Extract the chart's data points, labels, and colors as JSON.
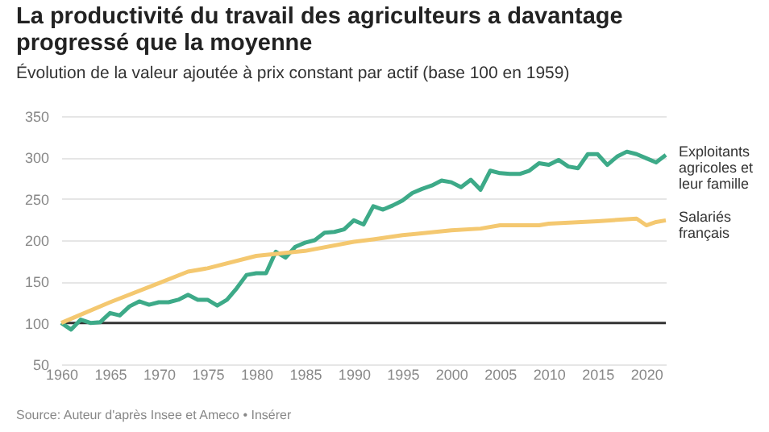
{
  "chart_data": {
    "type": "line",
    "title": "La productivité du travail des agriculteurs a davantage progressé que la moyenne",
    "subtitle": "Évolution de la valeur ajoutée à prix constant par actif (base 100 en 1959)",
    "series": [
      {
        "name": "Exploitants agricoles et leur famille",
        "color": "#3daa88",
        "x": [
          1960,
          1961,
          1962,
          1963,
          1964,
          1965,
          1966,
          1967,
          1968,
          1969,
          1970,
          1971,
          1972,
          1973,
          1974,
          1975,
          1976,
          1977,
          1978,
          1979,
          1980,
          1981,
          1982,
          1983,
          1984,
          1985,
          1986,
          1987,
          1988,
          1989,
          1990,
          1991,
          1992,
          1993,
          1994,
          1995,
          1996,
          1997,
          1998,
          1999,
          2000,
          2001,
          2002,
          2003,
          2004,
          2005,
          2006,
          2007,
          2008,
          2009,
          2010,
          2011,
          2012,
          2013,
          2014,
          2015,
          2016,
          2017,
          2018,
          2019,
          2020,
          2021,
          2022
        ],
        "values": [
          100,
          92,
          104,
          100,
          101,
          112,
          109,
          120,
          126,
          122,
          125,
          125,
          128,
          134,
          128,
          128,
          121,
          128,
          142,
          158,
          160,
          160,
          186,
          179,
          192,
          197,
          200,
          209,
          210,
          213,
          224,
          219,
          241,
          237,
          242,
          248,
          257,
          262,
          266,
          272,
          270,
          264,
          273,
          261,
          284,
          281,
          280,
          280,
          284,
          293,
          291,
          297,
          289,
          287,
          304,
          304,
          291,
          301,
          307,
          304,
          299,
          294,
          303
        ]
      },
      {
        "name": "Salariés français",
        "color": "#f4c870",
        "x": [
          1960,
          1962,
          1965,
          1970,
          1973,
          1975,
          1980,
          1985,
          1990,
          1992,
          1995,
          2000,
          2003,
          2005,
          2009,
          2010,
          2015,
          2019,
          2020,
          2021,
          2022
        ],
        "values": [
          100,
          110,
          125,
          148,
          162,
          166,
          181,
          187,
          198,
          201,
          206,
          212,
          214,
          218,
          218,
          220,
          223,
          226,
          218,
          222,
          224
        ]
      }
    ],
    "xlim": [
      1960,
      2022
    ],
    "xticks": [
      1960,
      1965,
      1970,
      1975,
      1980,
      1985,
      1990,
      1995,
      2000,
      2005,
      2010,
      2015,
      2020
    ],
    "ylim": [
      50,
      350
    ],
    "yticks": [
      50,
      100,
      150,
      200,
      250,
      300,
      350
    ],
    "grid": "y",
    "marker": "none",
    "line_style": "solid",
    "ref_lines": [
      {
        "axis": "y",
        "value": 100,
        "color": "#333333"
      }
    ],
    "annotations": [
      "Source: Auteur d'après Insee et Ameco • Insérer"
    ]
  }
}
